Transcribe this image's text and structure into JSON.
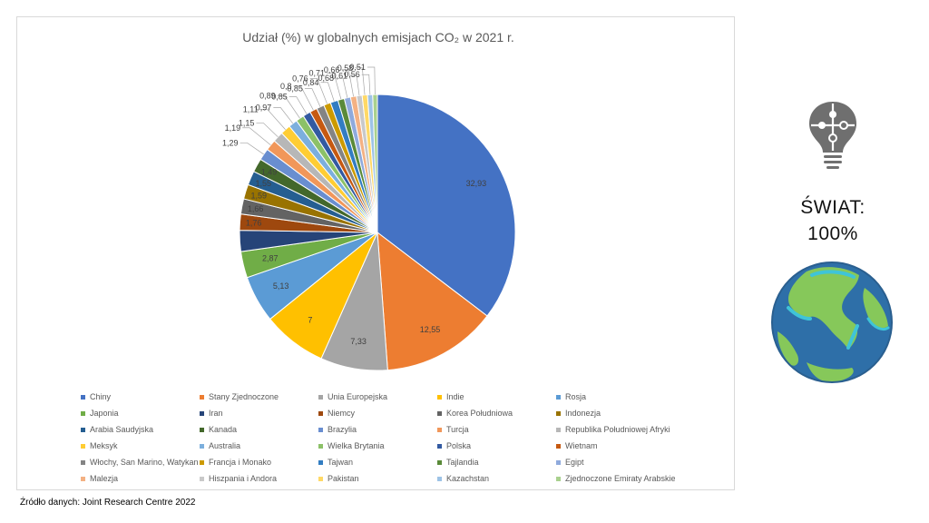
{
  "chart_data": {
    "type": "pie",
    "title": "Udział (%) w globalnych emisjach CO₂ w 2021 r.",
    "categories": [
      "Chiny",
      "Stany Zjednoczone",
      "Unia Europejska",
      "Indie",
      "Rosja",
      "Japonia",
      "Iran",
      "Niemcy",
      "Korea Południowa",
      "Indonezja",
      "Arabia Saudyjska",
      "Kanada",
      "Brazylia",
      "Turcja",
      "Republika Południowej Afryki",
      "Meksyk",
      "Australia",
      "Wielka Brytania",
      "Polska",
      "Wietnam",
      "Włochy, San Marino, Watykan",
      "Francja i Monako",
      "Tajwan",
      "Tajlandia",
      "Egipt",
      "Malezja",
      "Hiszpania i Andora",
      "Pakistan",
      "Kazachstan",
      "Zjednoczone Emiraty Arabskie"
    ],
    "values": [
      32.93,
      12.55,
      7.33,
      7,
      5.13,
      2.87,
      2.3,
      1.76,
      1.66,
      1.59,
      1.55,
      1.49,
      1.29,
      1.19,
      1.15,
      1.11,
      0.97,
      0.89,
      0.85,
      0.8,
      0.85,
      0.76,
      0.84,
      0.71,
      0.68,
      0.66,
      0.61,
      0.58,
      0.56,
      0.51
    ],
    "value_labels": [
      "32,93",
      "12,55",
      "7,33",
      "7",
      "5,13",
      "2,87",
      "",
      "1,76",
      "1,66",
      "1,59",
      "1,55",
      "1,49",
      "1,29",
      "1,19",
      "1,15",
      "1,11",
      "0,97",
      "0,89",
      "0,85",
      "0,8",
      "0,85",
      "0,76",
      "0,84",
      "0,71",
      "0,68",
      "0,66",
      "0,61",
      "0,58",
      "0,56",
      "0,51"
    ],
    "colors": [
      "#4472c4",
      "#ed7d31",
      "#a5a5a5",
      "#ffc000",
      "#5b9bd5",
      "#70ad47",
      "#264478",
      "#9e480e",
      "#636363",
      "#997300",
      "#255e91",
      "#43682b",
      "#698ed0",
      "#f1975a",
      "#b7b7b7",
      "#ffcd33",
      "#7cafdd",
      "#8cc168",
      "#335aa1",
      "#c65911",
      "#848484",
      "#cc9a00",
      "#327dc2",
      "#5a8a39",
      "#8faadc",
      "#f4b183",
      "#c9c9c9",
      "#ffd966",
      "#9dc3e6",
      "#a9d18e"
    ],
    "legend_position": "bottom"
  },
  "source_text": "Źródło danych:  Joint Research Centre 2022",
  "side": {
    "world_label": "ŚWIAT:",
    "world_value": "100%",
    "icon_puzzle": "lightbulb-puzzle-icon",
    "icon_globe": "globe-icon"
  }
}
